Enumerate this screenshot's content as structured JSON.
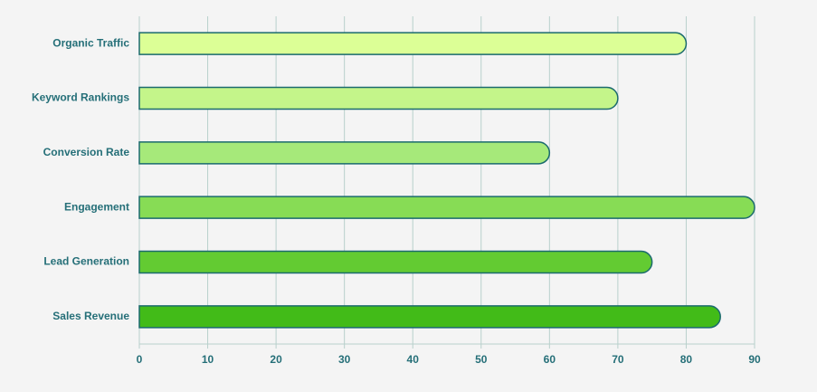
{
  "chart_data": {
    "type": "bar",
    "orientation": "horizontal",
    "categories": [
      "Organic Traffic",
      "Keyword Rankings",
      "Conversion Rate",
      "Engagement",
      "Lead Generation",
      "Sales Revenue"
    ],
    "values": [
      80,
      70,
      60,
      90,
      75,
      85
    ],
    "colors": [
      "#dcff96",
      "#c4f58a",
      "#a6e97a",
      "#87dc55",
      "#63cb32",
      "#42bb18"
    ],
    "edge_color": "#1b6a6e",
    "xlim": [
      0,
      90
    ],
    "xticks": [
      0,
      10,
      20,
      30,
      40,
      50,
      60,
      70,
      80,
      90
    ],
    "grid": true
  }
}
